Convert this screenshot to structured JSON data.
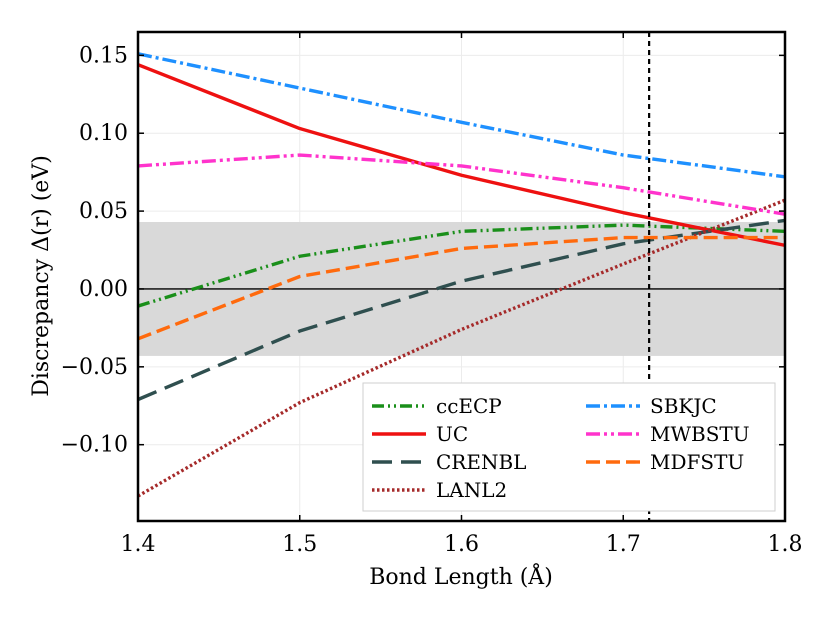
{
  "chart_data": {
    "type": "line",
    "title": "",
    "xlabel": "Bond Length (Å)",
    "ylabel": "Discrepancy Δ(r) (eV)",
    "xlim": [
      1.4,
      1.8
    ],
    "ylim": [
      -0.149,
      0.165
    ],
    "x_ticks": [
      1.4,
      1.5,
      1.6,
      1.7,
      1.8
    ],
    "x_tick_labels": [
      "1.4",
      "1.5",
      "1.6",
      "1.7",
      "1.8"
    ],
    "y_ticks": [
      -0.1,
      -0.05,
      0.0,
      0.05,
      0.1,
      0.15
    ],
    "y_tick_labels": [
      "−0.10",
      "−0.05",
      "0.00",
      "0.05",
      "0.10",
      "0.15"
    ],
    "x": [
      1.4,
      1.5,
      1.6,
      1.7,
      1.8
    ],
    "shaded_band": [
      -0.043,
      0.043
    ],
    "zero_line": 0.0,
    "vertical_line_x": 1.716,
    "legend_position": "lower-right",
    "series": [
      {
        "name": "ccECP",
        "color": "#1a8f1a",
        "dash": "12,4,2,4,2,4",
        "values": [
          -0.011,
          0.021,
          0.037,
          0.041,
          0.037
        ]
      },
      {
        "name": "UC",
        "color": "#ee1111",
        "dash": "",
        "values": [
          0.144,
          0.103,
          0.073,
          0.049,
          0.028
        ]
      },
      {
        "name": "CRENBL",
        "color": "#2f4f4f",
        "dash": "20,9",
        "values": [
          -0.071,
          -0.027,
          0.005,
          0.029,
          0.044
        ]
      },
      {
        "name": "LANL2",
        "color": "#a52a2a",
        "dash": "2.5,2.5",
        "values": [
          -0.133,
          -0.073,
          -0.026,
          0.016,
          0.057
        ]
      },
      {
        "name": "SBKJC",
        "color": "#1e90ff",
        "dash": "14,4,3,4",
        "values": [
          0.151,
          0.129,
          0.107,
          0.086,
          0.072
        ]
      },
      {
        "name": "MWBSTU",
        "color": "#ff33cc",
        "dash": "14,4,3,4,3,4",
        "values": [
          0.079,
          0.086,
          0.079,
          0.065,
          0.048
        ]
      },
      {
        "name": "MDFSTU",
        "color": "#ff6a0d",
        "dash": "14,6",
        "values": [
          -0.032,
          0.008,
          0.026,
          0.033,
          0.033
        ]
      }
    ]
  }
}
